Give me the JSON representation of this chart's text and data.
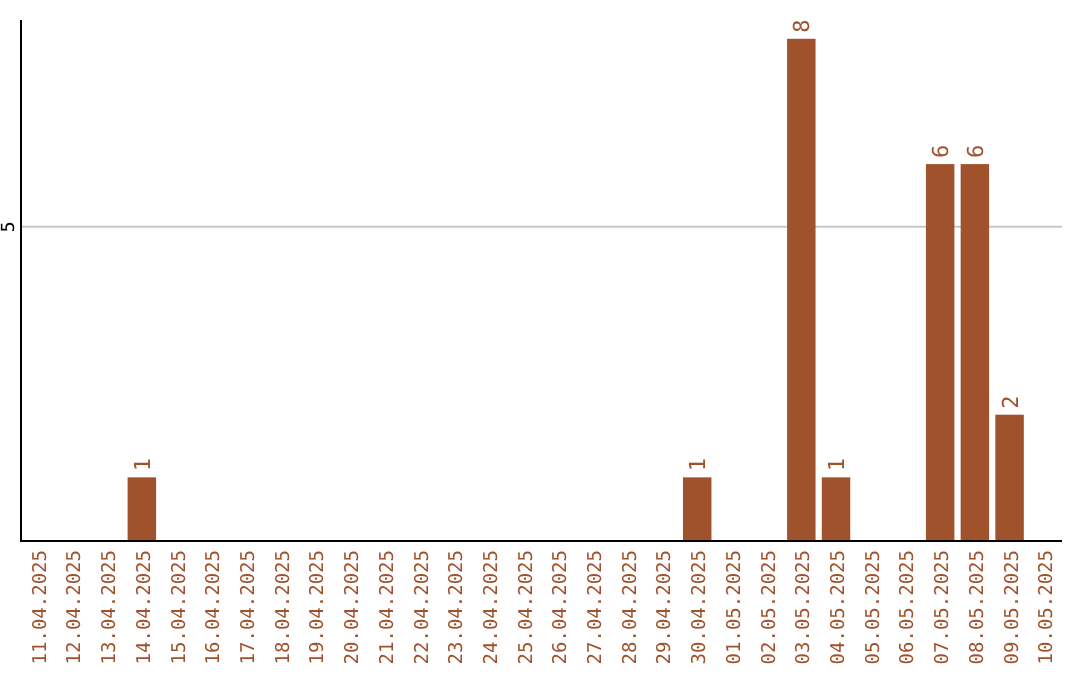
{
  "chart_data": {
    "type": "bar",
    "categories": [
      "11.04.2025",
      "12.04.2025",
      "13.04.2025",
      "14.04.2025",
      "15.04.2025",
      "16.04.2025",
      "17.04.2025",
      "18.04.2025",
      "19.04.2025",
      "20.04.2025",
      "21.04.2025",
      "22.04.2025",
      "23.04.2025",
      "24.04.2025",
      "25.04.2025",
      "26.04.2025",
      "27.04.2025",
      "28.04.2025",
      "29.04.2025",
      "30.04.2025",
      "01.05.2025",
      "02.05.2025",
      "03.05.2025",
      "04.05.2025",
      "05.05.2025",
      "06.05.2025",
      "07.05.2025",
      "08.05.2025",
      "09.05.2025",
      "10.05.2025"
    ],
    "values": [
      0,
      0,
      0,
      1,
      0,
      0,
      0,
      0,
      0,
      0,
      0,
      0,
      0,
      0,
      0,
      0,
      0,
      0,
      0,
      1,
      0,
      0,
      8,
      1,
      0,
      0,
      6,
      6,
      2,
      0
    ],
    "value_labels": [
      null,
      null,
      null,
      "1",
      null,
      null,
      null,
      null,
      null,
      null,
      null,
      null,
      null,
      null,
      null,
      null,
      null,
      null,
      null,
      "1",
      null,
      null,
      "8",
      "1",
      null,
      null,
      "6",
      "6",
      "2",
      null
    ],
    "color": "#a0522d",
    "ylim": [
      0,
      8.3
    ],
    "yticks": [
      5
    ],
    "grid": "y"
  }
}
